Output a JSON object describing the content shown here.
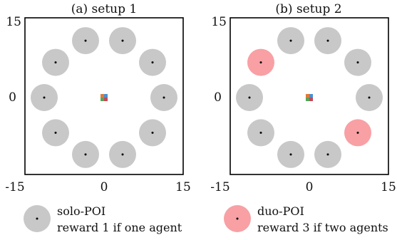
{
  "panels": [
    {
      "title": "(a) setup 1",
      "axis": {
        "xmin_label": "-15",
        "xmid_label": "0",
        "xmax_label": "15",
        "ymax_label": "15",
        "ymid_label": "0"
      },
      "pois": [
        {
          "type": "solo"
        },
        {
          "type": "solo"
        },
        {
          "type": "solo"
        },
        {
          "type": "solo"
        },
        {
          "type": "solo"
        },
        {
          "type": "solo"
        },
        {
          "type": "solo"
        },
        {
          "type": "solo"
        },
        {
          "type": "solo"
        },
        {
          "type": "solo"
        }
      ]
    },
    {
      "title": "(b) setup 2",
      "axis": {
        "xmin_label": "-15",
        "xmid_label": "0",
        "xmax_label": "15",
        "ymax_label": "15",
        "ymid_label": "0"
      },
      "pois": [
        {
          "type": "solo"
        },
        {
          "type": "solo"
        },
        {
          "type": "solo"
        },
        {
          "type": "duo"
        },
        {
          "type": "solo"
        },
        {
          "type": "solo"
        },
        {
          "type": "solo"
        },
        {
          "type": "solo"
        },
        {
          "type": "duo"
        },
        {
          "type": "solo"
        }
      ]
    }
  ],
  "legend": {
    "solo": {
      "name": "solo-POI",
      "desc": "reward 1 if one agent"
    },
    "duo": {
      "name": "duo-POI",
      "desc": "reward 3 if two agents"
    }
  },
  "colors": {
    "solo": "#c8c8c8",
    "duo": "#f8a0a4",
    "agent_tl": "#e07b3a",
    "agent_tr": "#4c8fd0",
    "agent_bl": "#5aa35a",
    "agent_br": "#c04a5a"
  }
}
